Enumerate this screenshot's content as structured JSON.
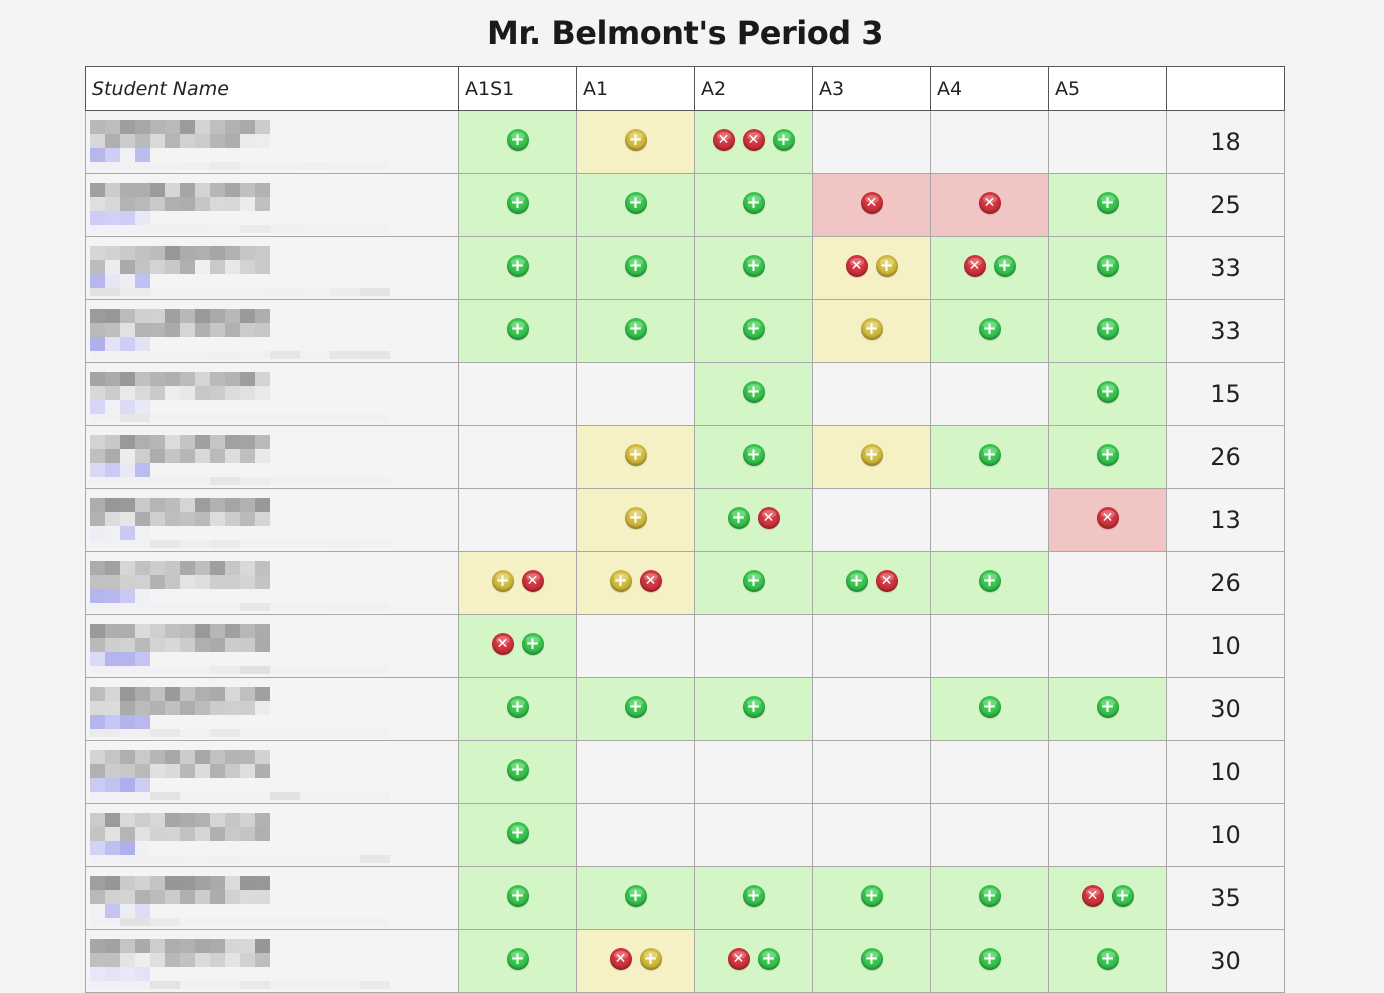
{
  "page": {
    "title": "Mr. Belmont's Period 3"
  },
  "colors": {
    "green_cell": "#d4f5c5",
    "yellow_cell": "#f6f1c5",
    "red_cell": "#f2c5c5",
    "plus_green_icon": "#2fbf47",
    "plus_yellow_icon": "#c9b43a",
    "x_red_icon": "#c72a33"
  },
  "table": {
    "columns": [
      "Student Name",
      "A1S1",
      "A1",
      "A2",
      "A3",
      "A4",
      "A5",
      ""
    ],
    "rows": [
      {
        "name": "",
        "cells": [
          {
            "color": "green",
            "icons": [
              "plus-green"
            ]
          },
          {
            "color": "yellow",
            "icons": [
              "plus-yellow"
            ]
          },
          {
            "color": "green",
            "icons": [
              "x-red",
              "x-red",
              "plus-green"
            ]
          },
          {
            "color": "none",
            "icons": []
          },
          {
            "color": "none",
            "icons": []
          },
          {
            "color": "none",
            "icons": []
          }
        ],
        "score": "18"
      },
      {
        "name": "",
        "cells": [
          {
            "color": "green",
            "icons": [
              "plus-green"
            ]
          },
          {
            "color": "green",
            "icons": [
              "plus-green"
            ]
          },
          {
            "color": "green",
            "icons": [
              "plus-green"
            ]
          },
          {
            "color": "red",
            "icons": [
              "x-red"
            ]
          },
          {
            "color": "red",
            "icons": [
              "x-red"
            ]
          },
          {
            "color": "green",
            "icons": [
              "plus-green"
            ]
          }
        ],
        "score": "25"
      },
      {
        "name": "",
        "cells": [
          {
            "color": "green",
            "icons": [
              "plus-green"
            ]
          },
          {
            "color": "green",
            "icons": [
              "plus-green"
            ]
          },
          {
            "color": "green",
            "icons": [
              "plus-green"
            ]
          },
          {
            "color": "yellow",
            "icons": [
              "x-red",
              "plus-yellow"
            ]
          },
          {
            "color": "green",
            "icons": [
              "x-red",
              "plus-green"
            ]
          },
          {
            "color": "green",
            "icons": [
              "plus-green"
            ]
          }
        ],
        "score": "33"
      },
      {
        "name": "",
        "cells": [
          {
            "color": "green",
            "icons": [
              "plus-green"
            ]
          },
          {
            "color": "green",
            "icons": [
              "plus-green"
            ]
          },
          {
            "color": "green",
            "icons": [
              "plus-green"
            ]
          },
          {
            "color": "yellow",
            "icons": [
              "plus-yellow"
            ]
          },
          {
            "color": "green",
            "icons": [
              "plus-green"
            ]
          },
          {
            "color": "green",
            "icons": [
              "plus-green"
            ]
          }
        ],
        "score": "33"
      },
      {
        "name": "",
        "cells": [
          {
            "color": "none",
            "icons": []
          },
          {
            "color": "none",
            "icons": []
          },
          {
            "color": "green",
            "icons": [
              "plus-green"
            ]
          },
          {
            "color": "none",
            "icons": []
          },
          {
            "color": "none",
            "icons": []
          },
          {
            "color": "green",
            "icons": [
              "plus-green"
            ]
          }
        ],
        "score": "15"
      },
      {
        "name": "",
        "cells": [
          {
            "color": "none",
            "icons": []
          },
          {
            "color": "yellow",
            "icons": [
              "plus-yellow"
            ]
          },
          {
            "color": "green",
            "icons": [
              "plus-green"
            ]
          },
          {
            "color": "yellow",
            "icons": [
              "plus-yellow"
            ]
          },
          {
            "color": "green",
            "icons": [
              "plus-green"
            ]
          },
          {
            "color": "green",
            "icons": [
              "plus-green"
            ]
          }
        ],
        "score": "26"
      },
      {
        "name": "",
        "cells": [
          {
            "color": "none",
            "icons": []
          },
          {
            "color": "yellow",
            "icons": [
              "plus-yellow"
            ]
          },
          {
            "color": "green",
            "icons": [
              "plus-green",
              "x-red"
            ]
          },
          {
            "color": "none",
            "icons": []
          },
          {
            "color": "none",
            "icons": []
          },
          {
            "color": "red",
            "icons": [
              "x-red"
            ]
          }
        ],
        "score": "13"
      },
      {
        "name": "",
        "cells": [
          {
            "color": "yellow",
            "icons": [
              "plus-yellow",
              "x-red"
            ]
          },
          {
            "color": "yellow",
            "icons": [
              "plus-yellow",
              "x-red"
            ]
          },
          {
            "color": "green",
            "icons": [
              "plus-green"
            ]
          },
          {
            "color": "green",
            "icons": [
              "plus-green",
              "x-red"
            ]
          },
          {
            "color": "green",
            "icons": [
              "plus-green"
            ]
          },
          {
            "color": "none",
            "icons": []
          }
        ],
        "score": "26"
      },
      {
        "name": "",
        "cells": [
          {
            "color": "green",
            "icons": [
              "x-red",
              "plus-green"
            ]
          },
          {
            "color": "none",
            "icons": []
          },
          {
            "color": "none",
            "icons": []
          },
          {
            "color": "none",
            "icons": []
          },
          {
            "color": "none",
            "icons": []
          },
          {
            "color": "none",
            "icons": []
          }
        ],
        "score": "10"
      },
      {
        "name": "",
        "cells": [
          {
            "color": "green",
            "icons": [
              "plus-green"
            ]
          },
          {
            "color": "green",
            "icons": [
              "plus-green"
            ]
          },
          {
            "color": "green",
            "icons": [
              "plus-green"
            ]
          },
          {
            "color": "none",
            "icons": []
          },
          {
            "color": "green",
            "icons": [
              "plus-green"
            ]
          },
          {
            "color": "green",
            "icons": [
              "plus-green"
            ]
          }
        ],
        "score": "30"
      },
      {
        "name": "",
        "cells": [
          {
            "color": "green",
            "icons": [
              "plus-green"
            ]
          },
          {
            "color": "none",
            "icons": []
          },
          {
            "color": "none",
            "icons": []
          },
          {
            "color": "none",
            "icons": []
          },
          {
            "color": "none",
            "icons": []
          },
          {
            "color": "none",
            "icons": []
          }
        ],
        "score": "10"
      },
      {
        "name": "",
        "cells": [
          {
            "color": "green",
            "icons": [
              "plus-green"
            ]
          },
          {
            "color": "none",
            "icons": []
          },
          {
            "color": "none",
            "icons": []
          },
          {
            "color": "none",
            "icons": []
          },
          {
            "color": "none",
            "icons": []
          },
          {
            "color": "none",
            "icons": []
          }
        ],
        "score": "10"
      },
      {
        "name": "",
        "cells": [
          {
            "color": "green",
            "icons": [
              "plus-green"
            ]
          },
          {
            "color": "green",
            "icons": [
              "plus-green"
            ]
          },
          {
            "color": "green",
            "icons": [
              "plus-green"
            ]
          },
          {
            "color": "green",
            "icons": [
              "plus-green"
            ]
          },
          {
            "color": "green",
            "icons": [
              "plus-green"
            ]
          },
          {
            "color": "green",
            "icons": [
              "x-red",
              "plus-green"
            ]
          }
        ],
        "score": "35"
      },
      {
        "name": "",
        "cells": [
          {
            "color": "green",
            "icons": [
              "plus-green"
            ]
          },
          {
            "color": "yellow",
            "icons": [
              "x-red",
              "plus-yellow"
            ]
          },
          {
            "color": "green",
            "icons": [
              "x-red",
              "plus-green"
            ]
          },
          {
            "color": "green",
            "icons": [
              "plus-green"
            ]
          },
          {
            "color": "green",
            "icons": [
              "plus-green"
            ]
          },
          {
            "color": "green",
            "icons": [
              "plus-green"
            ]
          }
        ],
        "score": "30"
      }
    ]
  }
}
